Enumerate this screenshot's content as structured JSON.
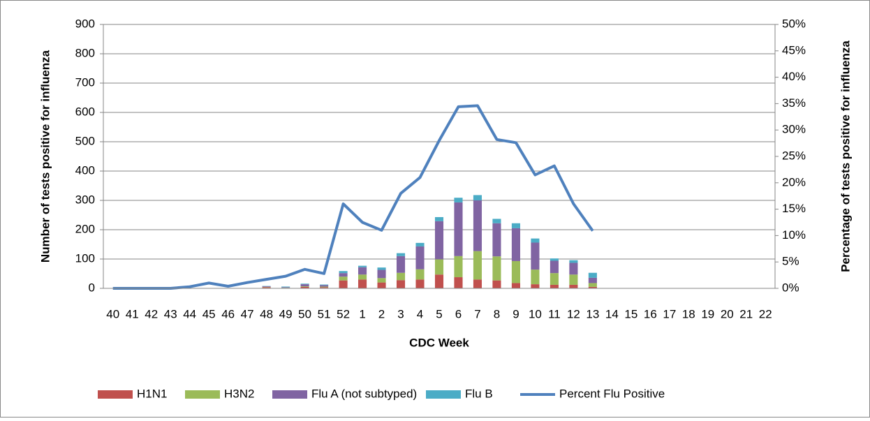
{
  "chart_data": {
    "type": "bar-line",
    "x_label": "CDC Week",
    "y_label": "Number of tests positive for influenza",
    "y2_label": "Percentage of tests positive for influenza",
    "categories": [
      "40",
      "41",
      "42",
      "43",
      "44",
      "45",
      "46",
      "47",
      "48",
      "49",
      "50",
      "51",
      "52",
      "1",
      "2",
      "3",
      "4",
      "5",
      "6",
      "7",
      "8",
      "9",
      "10",
      "11",
      "12",
      "13",
      "14",
      "15",
      "16",
      "17",
      "18",
      "19",
      "20",
      "21",
      "22"
    ],
    "ylim": [
      0,
      900
    ],
    "yticks": [
      0,
      100,
      200,
      300,
      400,
      500,
      600,
      700,
      800,
      900
    ],
    "y2lim": [
      0,
      50
    ],
    "y2ticks": [
      {
        "value": 0,
        "label": "0%"
      },
      {
        "value": 5,
        "label": "5%"
      },
      {
        "value": 10,
        "label": "10%"
      },
      {
        "value": 15,
        "label": "15%"
      },
      {
        "value": 20,
        "label": "20%"
      },
      {
        "value": 25,
        "label": "25%"
      },
      {
        "value": 30,
        "label": "30%"
      },
      {
        "value": 35,
        "label": "35%"
      },
      {
        "value": 40,
        "label": "40%"
      },
      {
        "value": 45,
        "label": "45%"
      },
      {
        "value": 50,
        "label": "50%"
      }
    ],
    "grid": true,
    "legend": "bottom",
    "series": [
      {
        "name": "H1N1",
        "color": "#c0504d",
        "kind": "bar",
        "values": [
          0,
          0,
          0,
          0,
          0,
          0,
          0,
          0,
          4,
          1,
          5,
          4,
          27,
          30,
          20,
          28,
          30,
          47,
          38,
          30,
          27,
          18,
          14,
          12,
          12,
          5,
          null,
          null,
          null,
          null,
          null,
          null,
          null,
          null,
          null
        ]
      },
      {
        "name": "H3N2",
        "color": "#9bbb59",
        "kind": "bar",
        "values": [
          0,
          0,
          0,
          0,
          0,
          0,
          0,
          0,
          1,
          1,
          2,
          2,
          13,
          17,
          15,
          25,
          35,
          52,
          72,
          97,
          82,
          75,
          50,
          40,
          35,
          13,
          null,
          null,
          null,
          null,
          null,
          null,
          null,
          null,
          null
        ]
      },
      {
        "name": "Flu A (not subtyped)",
        "color": "#8064a2",
        "kind": "bar",
        "values": [
          0,
          0,
          0,
          0,
          0,
          0,
          0,
          0,
          2,
          2,
          7,
          5,
          12,
          25,
          28,
          57,
          78,
          130,
          183,
          173,
          113,
          112,
          92,
          42,
          40,
          18,
          null,
          null,
          null,
          null,
          null,
          null,
          null,
          null,
          null
        ]
      },
      {
        "name": "Flu B",
        "color": "#4bacc6",
        "kind": "bar",
        "values": [
          0,
          0,
          0,
          0,
          0,
          0,
          0,
          0,
          1,
          2,
          2,
          2,
          7,
          5,
          8,
          10,
          12,
          14,
          16,
          18,
          15,
          17,
          14,
          8,
          9,
          17,
          null,
          null,
          null,
          null,
          null,
          null,
          null,
          null,
          null
        ]
      },
      {
        "name": "Percent Flu Positive",
        "color": "#4f81bd",
        "kind": "line",
        "axis": "y2",
        "values": [
          0,
          0,
          0,
          0,
          0.3,
          1.0,
          0.4,
          1.1,
          1.7,
          2.3,
          3.6,
          2.8,
          16,
          12.5,
          11,
          18,
          21,
          28,
          34.4,
          34.6,
          28.2,
          27.6,
          21.5,
          23.2,
          16,
          10.9,
          null,
          null,
          null,
          null,
          null,
          null,
          null,
          null,
          null
        ]
      }
    ]
  }
}
